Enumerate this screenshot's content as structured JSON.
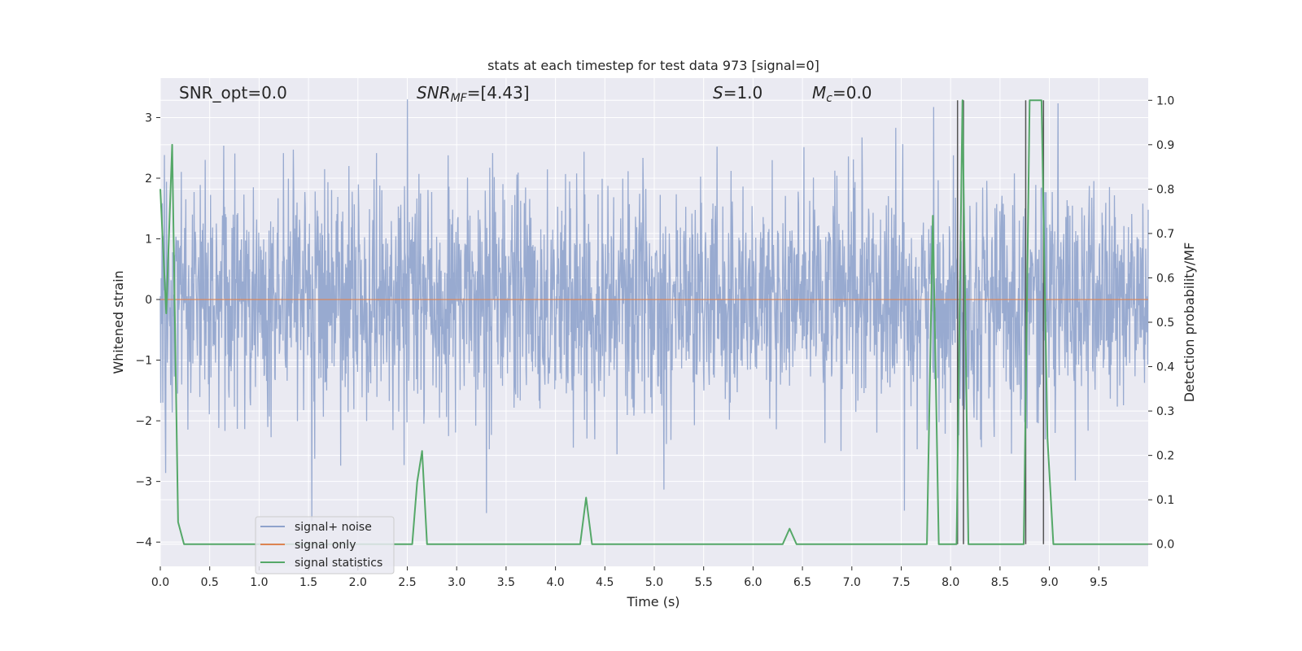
{
  "chart_data": {
    "type": "line",
    "title": "stats at each timestep for test data 973 [signal=0]",
    "xlabel": "Time (s)",
    "ylabel_left": "Whitened strain",
    "ylabel_right": "Detection probability/MF",
    "xlim": [
      0.0,
      10.0
    ],
    "ylim_left": [
      -4.4,
      3.65
    ],
    "ylim_right": [
      -0.05,
      1.05
    ],
    "xticks": [
      "0.0",
      "0.5",
      "1.0",
      "1.5",
      "2.0",
      "2.5",
      "3.0",
      "3.5",
      "4.0",
      "4.5",
      "5.0",
      "5.5",
      "6.0",
      "6.5",
      "7.0",
      "7.5",
      "8.0",
      "8.5",
      "9.0",
      "9.5"
    ],
    "yticks_left": [
      "3",
      "2",
      "1",
      "0",
      "−1",
      "−2",
      "−3",
      "−4"
    ],
    "yticks_right": [
      "1.0",
      "0.9",
      "0.8",
      "0.7",
      "0.6",
      "0.5",
      "0.4",
      "0.3",
      "0.2",
      "0.1",
      "0.0"
    ],
    "annotations": {
      "snr_opt": "SNR_opt=0.0",
      "snr_mf_label": "SNR",
      "snr_mf_sub": "MF",
      "snr_mf_value": "=[4.43]",
      "s_label": "S",
      "s_value": "=1.0",
      "mc_label": "M",
      "mc_sub": "c",
      "mc_value": "=0.0"
    },
    "legend": {
      "position": "lower-left",
      "entries": [
        "signal+ noise",
        "signal only",
        "signal statistics"
      ]
    },
    "series": [
      {
        "name": "signal+ noise",
        "color": "#8fa3cc",
        "type": "noise",
        "approx_range": [
          -4.05,
          3.3
        ]
      },
      {
        "name": "signal only",
        "color": "#dd8452",
        "values_const": 0.0
      },
      {
        "name": "signal statistics",
        "color": "#55a868",
        "x": [
          0.0,
          0.06,
          0.12,
          0.18,
          0.24,
          2.55,
          2.6,
          2.65,
          2.7,
          4.25,
          4.31,
          4.37,
          6.3,
          6.37,
          6.44,
          7.76,
          7.82,
          7.88,
          8.06,
          8.12,
          8.18,
          8.48,
          8.74,
          8.8,
          8.86,
          8.92,
          8.98,
          9.04,
          10.0
        ],
        "y": [
          0.8,
          0.52,
          0.9,
          0.05,
          0.0,
          0.0,
          0.14,
          0.21,
          0.0,
          0.0,
          0.105,
          0.0,
          0.0,
          0.035,
          0.0,
          0.0,
          0.74,
          0.0,
          0.0,
          1.0,
          0.0,
          0.0,
          0.0,
          1.0,
          1.0,
          1.0,
          0.24,
          0.0,
          0.0
        ]
      }
    ],
    "vlines": {
      "color": "#555555",
      "x": [
        8.07,
        8.13,
        8.76,
        8.94
      ],
      "ymax": 1.0
    },
    "grid": true,
    "colors": {
      "background": "#eaeaf2",
      "grid": "#ffffff"
    }
  }
}
